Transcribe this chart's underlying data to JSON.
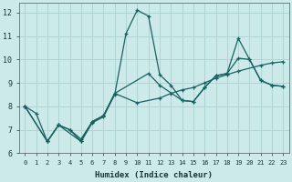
{
  "xlabel": "Humidex (Indice chaleur)",
  "xlim": [
    -0.5,
    23.5
  ],
  "ylim": [
    6,
    12.4
  ],
  "yticks": [
    6,
    7,
    8,
    9,
    10,
    11,
    12
  ],
  "xticks": [
    0,
    1,
    2,
    3,
    4,
    5,
    6,
    7,
    8,
    9,
    10,
    11,
    12,
    13,
    14,
    15,
    16,
    17,
    18,
    19,
    20,
    21,
    22,
    23
  ],
  "bg_color": "#cceaea",
  "grid_color": "#b0d4d4",
  "line_color": "#1a6060",
  "curve1_x": [
    0,
    1,
    2,
    3,
    4,
    5,
    6,
    7,
    8,
    9,
    10,
    11,
    12,
    13,
    14,
    15,
    16,
    17,
    18,
    19,
    20,
    21,
    22,
    23
  ],
  "curve1_y": [
    8.0,
    7.7,
    6.5,
    7.2,
    7.0,
    6.5,
    7.3,
    7.55,
    8.5,
    11.1,
    12.1,
    11.85,
    9.35,
    8.9,
    8.25,
    8.2,
    8.8,
    9.3,
    9.4,
    10.05,
    10.0,
    9.1,
    8.9,
    8.85
  ],
  "curve2_x": [
    0,
    2,
    3,
    5,
    6,
    7,
    8,
    10,
    12,
    13,
    14,
    15,
    16,
    17,
    18,
    19,
    21,
    22,
    23
  ],
  "curve2_y": [
    8.0,
    6.5,
    7.2,
    6.5,
    7.35,
    7.6,
    8.55,
    8.15,
    8.35,
    8.55,
    8.7,
    8.8,
    9.0,
    9.2,
    9.35,
    9.5,
    9.75,
    9.85,
    9.9
  ],
  "curve3_x": [
    0,
    2,
    3,
    4,
    5,
    6,
    7,
    8,
    11,
    12,
    14,
    15,
    16,
    17,
    18,
    19,
    20,
    21,
    22,
    23
  ],
  "curve3_y": [
    8.0,
    6.5,
    7.2,
    7.0,
    6.6,
    7.35,
    7.6,
    8.55,
    9.4,
    8.9,
    8.25,
    8.2,
    8.8,
    9.3,
    9.4,
    10.9,
    10.0,
    9.1,
    8.9,
    8.85
  ]
}
